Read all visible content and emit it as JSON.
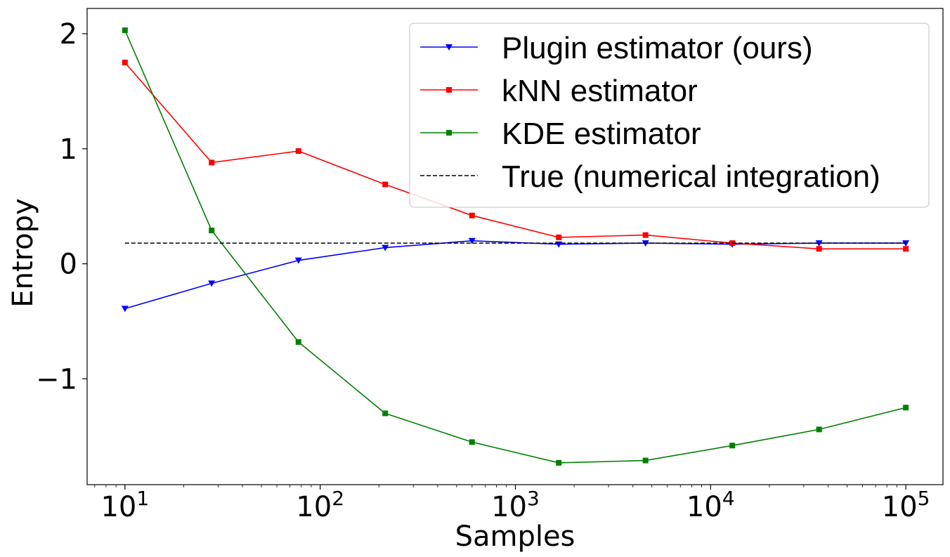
{
  "chart_data": {
    "type": "line",
    "title": "",
    "xlabel": "Samples",
    "ylabel": "Entropy",
    "xscale": "log",
    "x": [
      10,
      27.8,
      77.4,
      215.4,
      599.5,
      1668.1,
      4641.6,
      12915.5,
      35938.1,
      100000
    ],
    "xlim": [
      6.4,
      155000
    ],
    "ylim": [
      -1.92,
      2.22
    ],
    "x_ticks": [
      {
        "value": 10,
        "base": "10",
        "exp": "1"
      },
      {
        "value": 100,
        "base": "10",
        "exp": "2"
      },
      {
        "value": 1000,
        "base": "10",
        "exp": "3"
      },
      {
        "value": 10000,
        "base": "10",
        "exp": "4"
      },
      {
        "value": 100000,
        "base": "10",
        "exp": "5"
      }
    ],
    "y_ticks": [
      {
        "value": 2,
        "label": "2"
      },
      {
        "value": 1,
        "label": "1"
      },
      {
        "value": 0,
        "label": "0"
      },
      {
        "value": -1,
        "label": "−1"
      }
    ],
    "grid": false,
    "legend_position": "top-right",
    "series": [
      {
        "name": "Plugin estimator (ours)",
        "color": "#0000ff",
        "marker": "triangle-down",
        "style": "solid",
        "values": [
          -0.39,
          -0.17,
          0.03,
          0.14,
          0.2,
          0.17,
          0.18,
          0.17,
          0.18,
          0.18
        ]
      },
      {
        "name": "kNN estimator",
        "color": "#ff0000",
        "marker": "square",
        "style": "solid",
        "values": [
          1.75,
          0.88,
          0.98,
          0.69,
          0.42,
          0.23,
          0.25,
          0.18,
          0.13,
          0.13
        ]
      },
      {
        "name": "KDE estimator",
        "color": "#008000",
        "marker": "square",
        "style": "solid",
        "values": [
          2.03,
          0.29,
          -0.68,
          -1.3,
          -1.55,
          -1.73,
          -1.71,
          -1.58,
          -1.44,
          -1.25
        ]
      },
      {
        "name": "True (numerical integration)",
        "color": "#000000",
        "marker": "none",
        "style": "dashed",
        "values": [
          0.18,
          0.18,
          0.18,
          0.18,
          0.18,
          0.18,
          0.18,
          0.18,
          0.18,
          0.18
        ]
      }
    ]
  }
}
